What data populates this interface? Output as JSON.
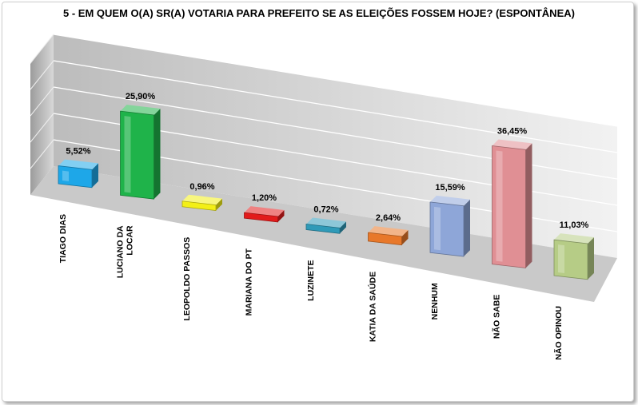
{
  "chart_data": {
    "type": "bar",
    "title": "5 - EM QUEM O(A) SR(A) VOTARIA PARA PREFEITO SE AS ELEIÇÕES FOSSEM HOJE? (ESPONTÂNEA)",
    "unit": "%",
    "ylim": [
      0,
      40
    ],
    "grid": true,
    "categories": [
      [
        "TIAGO DIAS"
      ],
      [
        "LUCIANO DA",
        "LOCAR"
      ],
      [
        "LEOPOLDO PASSOS"
      ],
      [
        "MARIANA DO PT"
      ],
      [
        "LUZINETE"
      ],
      [
        "KATIA DA SAÚDE"
      ],
      [
        "NENHUM"
      ],
      [
        "NÃO SABE"
      ],
      [
        "NÃO OPINOU"
      ]
    ],
    "values": [
      5.52,
      25.9,
      0.96,
      1.2,
      0.72,
      2.64,
      15.59,
      36.45,
      11.03
    ],
    "data_labels": [
      "5,52%",
      "25,90%",
      "0,96%",
      "1,20%",
      "0,72%",
      "2,64%",
      "15,59%",
      "36,45%",
      "11,03%"
    ],
    "colors": [
      "#1ea7e8",
      "#1fb34a",
      "#f3ef16",
      "#e21b1b",
      "#2f9ab8",
      "#e8782a",
      "#8ea6d8",
      "#e08f94",
      "#b6cc86"
    ]
  }
}
